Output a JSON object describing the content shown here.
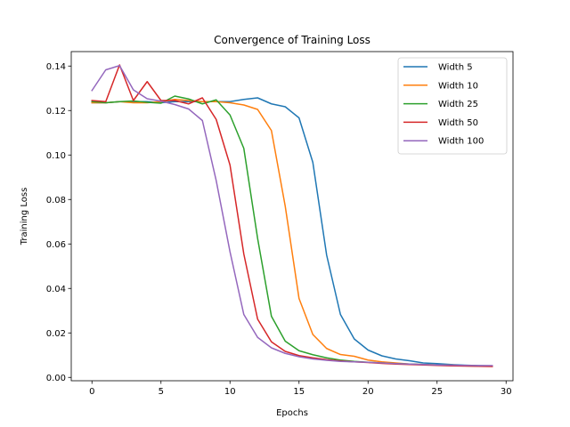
{
  "chart_data": {
    "type": "line",
    "title": "Convergence of Training Loss",
    "xlabel": "Epochs",
    "ylabel": "Training Loss",
    "xlim": [
      -1.5,
      30.5
    ],
    "ylim": [
      -0.0015,
      0.1465
    ],
    "xticks": [
      0,
      5,
      10,
      15,
      20,
      25,
      30
    ],
    "xtick_labels": [
      "0",
      "5",
      "10",
      "15",
      "20",
      "25",
      "30"
    ],
    "yticks": [
      0.0,
      0.02,
      0.04,
      0.06,
      0.08,
      0.1,
      0.12,
      0.14
    ],
    "ytick_labels": [
      "0.00",
      "0.02",
      "0.04",
      "0.06",
      "0.08",
      "0.10",
      "0.12",
      "0.14"
    ],
    "grid": false,
    "legend_position": "top-right",
    "x": [
      0,
      1,
      2,
      3,
      4,
      5,
      6,
      7,
      8,
      9,
      10,
      11,
      12,
      13,
      14,
      15,
      16,
      17,
      18,
      19,
      20,
      21,
      22,
      23,
      24,
      25,
      26,
      27,
      28,
      29
    ],
    "series": [
      {
        "name": "Width 5",
        "color": "#1f77b4",
        "values": [
          0.1235,
          0.1235,
          0.124,
          0.124,
          0.124,
          0.1235,
          0.124,
          0.124,
          0.124,
          0.124,
          0.124,
          0.125,
          0.1257,
          0.123,
          0.1217,
          0.1167,
          0.0967,
          0.055,
          0.0283,
          0.0173,
          0.0123,
          0.0097,
          0.0083,
          0.0075,
          0.0065,
          0.0062,
          0.0058,
          0.0055,
          0.0053,
          0.0052
        ]
      },
      {
        "name": "Width 10",
        "color": "#ff7f0e",
        "values": [
          0.1235,
          0.1235,
          0.124,
          0.1235,
          0.1235,
          0.124,
          0.125,
          0.1245,
          0.124,
          0.124,
          0.1235,
          0.1225,
          0.1205,
          0.111,
          0.077,
          0.0355,
          0.0193,
          0.013,
          0.0103,
          0.0095,
          0.0078,
          0.007,
          0.0065,
          0.006,
          0.0058,
          0.0056,
          0.0055,
          0.0053,
          0.0052,
          0.0051
        ]
      },
      {
        "name": "Width 25",
        "color": "#2ca02c",
        "values": [
          0.124,
          0.1235,
          0.124,
          0.1243,
          0.1237,
          0.1233,
          0.1265,
          0.1252,
          0.123,
          0.1248,
          0.118,
          0.103,
          0.0625,
          0.0275,
          0.0163,
          0.012,
          0.0102,
          0.0088,
          0.0078,
          0.0072,
          0.0068,
          0.0065,
          0.0062,
          0.006,
          0.0058,
          0.0056,
          0.0054,
          0.0052,
          0.0051,
          0.005
        ]
      },
      {
        "name": "Width 50",
        "color": "#d62728",
        "values": [
          0.1245,
          0.124,
          0.1405,
          0.1245,
          0.133,
          0.1245,
          0.1245,
          0.123,
          0.1257,
          0.116,
          0.0955,
          0.0555,
          0.0262,
          0.016,
          0.0117,
          0.0098,
          0.0088,
          0.008,
          0.0074,
          0.007,
          0.0067,
          0.0063,
          0.006,
          0.0058,
          0.0056,
          0.0054,
          0.0052,
          0.0051,
          0.005,
          0.0049
        ]
      },
      {
        "name": "Width 100",
        "color": "#9467bd",
        "values": [
          0.129,
          0.1383,
          0.1402,
          0.1293,
          0.1253,
          0.1242,
          0.1227,
          0.1207,
          0.1155,
          0.0885,
          0.0565,
          0.0283,
          0.018,
          0.0133,
          0.0108,
          0.0093,
          0.0083,
          0.0077,
          0.0072,
          0.007,
          0.0068,
          0.0065,
          0.0062,
          0.006,
          0.0058,
          0.0056,
          0.0055,
          0.0054,
          0.0053,
          0.0053
        ]
      }
    ]
  }
}
